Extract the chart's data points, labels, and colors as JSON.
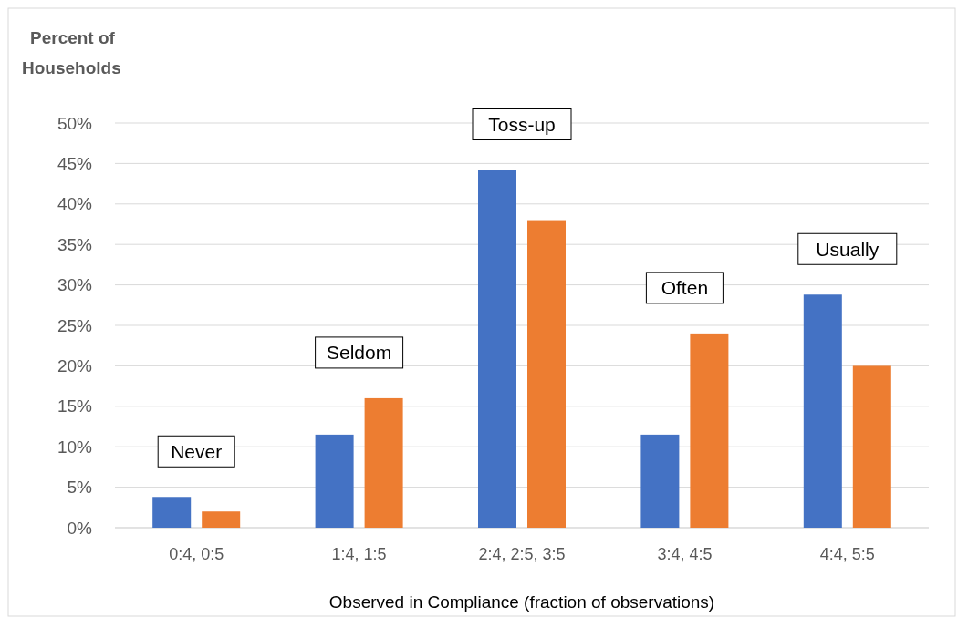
{
  "chart_data": {
    "type": "bar",
    "ylabel": "Percent of Households",
    "xlabel": "Observed in Compliance (fraction of observations)",
    "categories": [
      "0:4, 0:5",
      "1:4, 1:5",
      "2:4, 2:5, 3:5",
      "3:4, 4:5",
      "4:4, 5:5"
    ],
    "series": [
      {
        "color": "#4472c4",
        "values": [
          3.8,
          11.5,
          44.2,
          11.5,
          28.8
        ]
      },
      {
        "color": "#ed7d31",
        "values": [
          2,
          16,
          38,
          24,
          20
        ]
      }
    ],
    "ylim": [
      0,
      50
    ],
    "yticks": [
      {
        "value": 0,
        "label": "0%"
      },
      {
        "value": 5,
        "label": "5%"
      },
      {
        "value": 10,
        "label": "10%"
      },
      {
        "value": 15,
        "label": "15%"
      },
      {
        "value": 20,
        "label": "20%"
      },
      {
        "value": 25,
        "label": "25%"
      },
      {
        "value": 30,
        "label": "30%"
      },
      {
        "value": 35,
        "label": "35%"
      },
      {
        "value": 40,
        "label": "40%"
      },
      {
        "value": 45,
        "label": "45%"
      },
      {
        "value": 50,
        "label": "50%"
      }
    ],
    "grid": "y",
    "annotations": [
      "Never",
      "Seldom",
      "Toss-up",
      "Often",
      "Usually"
    ]
  }
}
